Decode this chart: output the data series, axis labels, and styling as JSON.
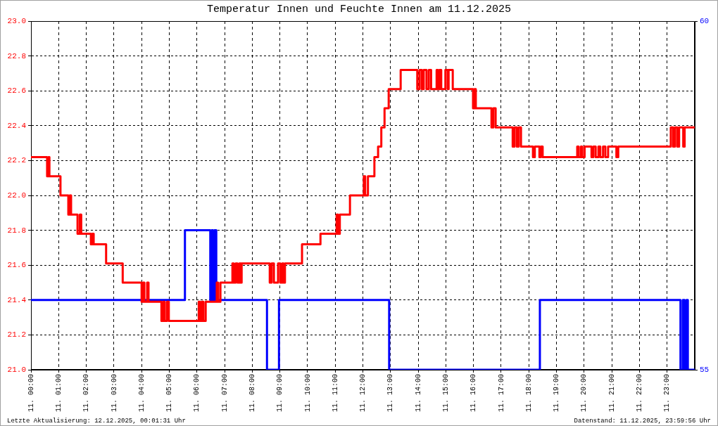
{
  "chart_data": {
    "type": "step",
    "title": "Temperatur Innen und Feuchte Innen am 11.12.2025",
    "annotations": [
      "Letzte Aktualisierung: 12.12.2025, 00:01:31 Uhr",
      "Datenstand: 11.12.2025, 23:59:56 Uhr"
    ],
    "xlim": [
      "2025-12-11T00:00",
      "2025-12-12T00:00"
    ],
    "xticks": [
      {
        "value": "2025-12-11T00:00",
        "label": "11. 00:00"
      },
      {
        "value": "2025-12-11T01:00",
        "label": "11. 01:00"
      },
      {
        "value": "2025-12-11T02:00",
        "label": "11. 02:00"
      },
      {
        "value": "2025-12-11T03:00",
        "label": "11. 03:00"
      },
      {
        "value": "2025-12-11T04:00",
        "label": "11. 04:00"
      },
      {
        "value": "2025-12-11T05:00",
        "label": "11. 05:00"
      },
      {
        "value": "2025-12-11T06:00",
        "label": "11. 06:00"
      },
      {
        "value": "2025-12-11T07:00",
        "label": "11. 07:00"
      },
      {
        "value": "2025-12-11T08:00",
        "label": "11. 08:00"
      },
      {
        "value": "2025-12-11T09:00",
        "label": "11. 09:00"
      },
      {
        "value": "2025-12-11T10:00",
        "label": "11. 10:00"
      },
      {
        "value": "2025-12-11T11:00",
        "label": "11. 11:00"
      },
      {
        "value": "2025-12-11T12:00",
        "label": "11. 12:00"
      },
      {
        "value": "2025-12-11T13:00",
        "label": "11. 13:00"
      },
      {
        "value": "2025-12-11T14:00",
        "label": "11. 14:00"
      },
      {
        "value": "2025-12-11T15:00",
        "label": "11. 15:00"
      },
      {
        "value": "2025-12-11T16:00",
        "label": "11. 16:00"
      },
      {
        "value": "2025-12-11T17:00",
        "label": "11. 17:00"
      },
      {
        "value": "2025-12-11T18:00",
        "label": "11. 18:00"
      },
      {
        "value": "2025-12-11T19:00",
        "label": "11. 19:00"
      },
      {
        "value": "2025-12-11T20:00",
        "label": "11. 20:00"
      },
      {
        "value": "2025-12-11T21:00",
        "label": "11. 21:00"
      },
      {
        "value": "2025-12-11T22:00",
        "label": "11. 22:00"
      },
      {
        "value": "2025-12-11T23:00",
        "label": "11. 23:00"
      }
    ],
    "ylim": [
      21,
      23
    ],
    "yticks": [
      {
        "value": 21,
        "label": "21.0"
      },
      21.2,
      21.4,
      21.6,
      21.8,
      {
        "value": 22,
        "label": "22.0"
      },
      22.2,
      22.4,
      22.6,
      22.8,
      {
        "value": 23,
        "label": "23.0"
      }
    ],
    "y2lim": [
      55,
      60
    ],
    "y2ticks": [
      55,
      60
    ],
    "grid": true,
    "series": [
      {
        "color": "#ff0000",
        "x": [
          "2025-12-11T00:00",
          "2025-12-11T00:35",
          "2025-12-11T00:38",
          "2025-12-11T00:40",
          "2025-12-11T01:04",
          "2025-12-11T01:21",
          "2025-12-11T01:24",
          "2025-12-11T01:27",
          "2025-12-11T01:41",
          "2025-12-11T01:46",
          "2025-12-11T01:49",
          "2025-12-11T02:10",
          "2025-12-11T02:13",
          "2025-12-11T02:16",
          "2025-12-11T02:43",
          "2025-12-11T03:19",
          "2025-12-11T04:00",
          "2025-12-11T04:03",
          "2025-12-11T04:06",
          "2025-12-11T04:12",
          "2025-12-11T04:15",
          "2025-12-11T04:43",
          "2025-12-11T04:47",
          "2025-12-11T04:50",
          "2025-12-11T04:55",
          "2025-12-11T04:59",
          "2025-12-11T06:04",
          "2025-12-11T06:07",
          "2025-12-11T06:11",
          "2025-12-11T06:14",
          "2025-12-11T06:19",
          "2025-12-11T06:43",
          "2025-12-11T06:46",
          "2025-12-11T06:51",
          "2025-12-11T07:17",
          "2025-12-11T07:20",
          "2025-12-11T07:24",
          "2025-12-11T07:28",
          "2025-12-11T07:32",
          "2025-12-11T07:35",
          "2025-12-11T07:37",
          "2025-12-11T08:38",
          "2025-12-11T08:42",
          "2025-12-11T08:47",
          "2025-12-11T08:56",
          "2025-12-11T09:01",
          "2025-12-11T09:05",
          "2025-12-11T09:08",
          "2025-12-11T09:11",
          "2025-12-11T09:48",
          "2025-12-11T10:28",
          "2025-12-11T11:03",
          "2025-12-11T11:06",
          "2025-12-11T11:10",
          "2025-12-11T11:32",
          "2025-12-11T12:02",
          "2025-12-11T12:05",
          "2025-12-11T12:11",
          "2025-12-11T12:25",
          "2025-12-11T12:33",
          "2025-12-11T12:40",
          "2025-12-11T12:47",
          "2025-12-11T12:56",
          "2025-12-11T13:22",
          "2025-12-11T13:58",
          "2025-12-11T14:03",
          "2025-12-11T14:08",
          "2025-12-11T14:12",
          "2025-12-11T14:18",
          "2025-12-11T14:23",
          "2025-12-11T14:28",
          "2025-12-11T14:40",
          "2025-12-11T14:43",
          "2025-12-11T14:46",
          "2025-12-11T14:50",
          "2025-12-11T14:59",
          "2025-12-11T15:04",
          "2025-12-11T15:06",
          "2025-12-11T15:15",
          "2025-12-11T15:59",
          "2025-12-11T16:02",
          "2025-12-11T16:05",
          "2025-12-11T16:39",
          "2025-12-11T16:43",
          "2025-12-11T16:48",
          "2025-12-11T17:25",
          "2025-12-11T17:29",
          "2025-12-11T17:34",
          "2025-12-11T17:38",
          "2025-12-11T17:43",
          "2025-12-11T18:09",
          "2025-12-11T18:13",
          "2025-12-11T18:23",
          "2025-12-11T18:26",
          "2025-12-11T18:30",
          "2025-12-11T19:45",
          "2025-12-11T19:48",
          "2025-12-11T19:53",
          "2025-12-11T19:56",
          "2025-12-11T20:01",
          "2025-12-11T20:16",
          "2025-12-11T20:20",
          "2025-12-11T20:25",
          "2025-12-11T20:31",
          "2025-12-11T20:35",
          "2025-12-11T20:41",
          "2025-12-11T20:46",
          "2025-12-11T20:52",
          "2025-12-11T21:10",
          "2025-12-11T21:14",
          "2025-12-11T23:08",
          "2025-12-11T23:13",
          "2025-12-11T23:17",
          "2025-12-11T23:22",
          "2025-12-11T23:26",
          "2025-12-11T23:35",
          "2025-12-11T23:38",
          "2025-12-12T00:00"
        ],
        "values": [
          22.22,
          22.11,
          22.22,
          22.11,
          22.0,
          21.89,
          22.0,
          21.89,
          21.78,
          21.89,
          21.78,
          21.72,
          21.78,
          21.72,
          21.61,
          21.5,
          21.39,
          21.5,
          21.39,
          21.5,
          21.39,
          21.28,
          21.39,
          21.28,
          21.39,
          21.28,
          21.39,
          21.28,
          21.39,
          21.28,
          21.39,
          21.5,
          21.39,
          21.5,
          21.61,
          21.5,
          21.61,
          21.5,
          21.61,
          21.5,
          21.61,
          21.5,
          21.61,
          21.5,
          21.61,
          21.5,
          21.61,
          21.5,
          21.61,
          21.72,
          21.78,
          21.89,
          21.78,
          21.89,
          22.0,
          22.11,
          22.0,
          22.11,
          22.22,
          22.28,
          22.39,
          22.5,
          22.61,
          22.72,
          22.61,
          22.72,
          22.61,
          22.72,
          22.61,
          22.72,
          22.61,
          22.72,
          22.61,
          22.72,
          22.61,
          22.72,
          22.61,
          22.72,
          22.61,
          22.5,
          22.61,
          22.5,
          22.39,
          22.5,
          22.39,
          22.28,
          22.39,
          22.28,
          22.39,
          22.28,
          22.22,
          22.28,
          22.22,
          22.28,
          22.22,
          22.28,
          22.22,
          22.28,
          22.22,
          22.28,
          22.22,
          22.28,
          22.22,
          22.28,
          22.22,
          22.28,
          22.22,
          22.28,
          22.22,
          22.28,
          22.39,
          22.28,
          22.39,
          22.28,
          22.39,
          22.28,
          22.39,
          22.39
        ]
      },
      {
        "color": "#0000ff",
        "axis": "y2",
        "x": [
          "2025-12-11T00:00",
          "2025-12-11T05:34",
          "2025-12-11T06:29",
          "2025-12-11T06:32",
          "2025-12-11T06:35",
          "2025-12-11T06:38",
          "2025-12-11T06:42",
          "2025-12-11T08:32",
          "2025-12-11T08:58",
          "2025-12-11T12:57",
          "2025-12-11T18:24",
          "2025-12-11T23:29",
          "2025-12-11T23:34",
          "2025-12-11T23:38",
          "2025-12-11T23:42",
          "2025-12-11T23:45",
          "2025-12-12T00:00"
        ],
        "values": [
          56,
          57,
          56,
          57,
          56,
          57,
          56,
          55,
          56,
          55,
          56,
          55,
          56,
          55,
          56,
          55,
          55
        ]
      }
    ]
  }
}
